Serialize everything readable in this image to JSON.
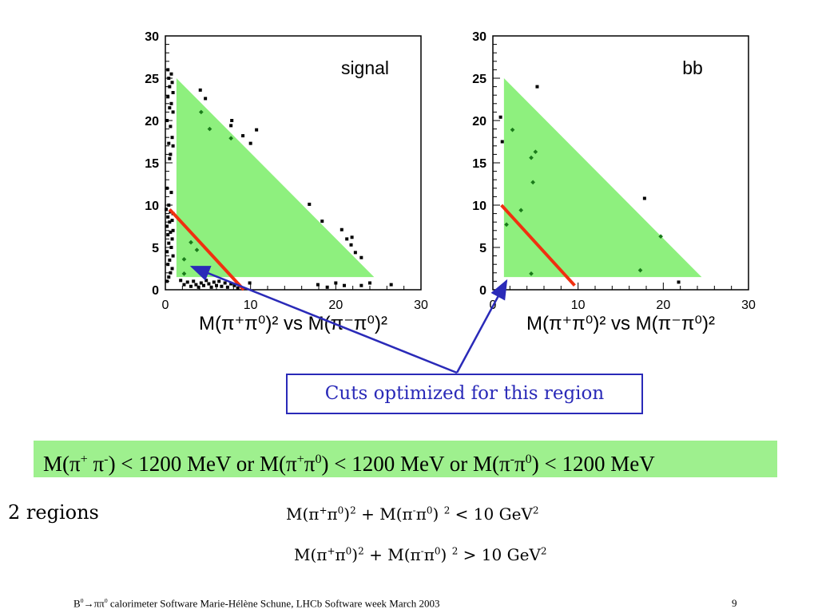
{
  "colors": {
    "region_fill": "#8ef07e",
    "cut_line": "#f03010",
    "arrow": "#2a2ab8",
    "band_fill": "#9ef08e",
    "signal_marker": "#000000",
    "inside_marker": "#1a7a1a"
  },
  "chart_data": [
    {
      "type": "scatter",
      "title": "signal",
      "xlabel": "M(π⁺π⁰)² vs M(π⁻π⁰)²",
      "xlim": [
        0,
        30
      ],
      "ylim": [
        0,
        30
      ],
      "xticks": [
        "0",
        "10",
        "20",
        "30"
      ],
      "yticks": [
        "0",
        "5",
        "10",
        "15",
        "20",
        "25",
        "30"
      ],
      "region": [
        [
          1.3,
          1.5
        ],
        [
          1.3,
          25
        ],
        [
          24.5,
          1.5
        ]
      ],
      "cut_line": [
        [
          0.5,
          9.5
        ],
        [
          9.2,
          0
        ]
      ],
      "points_outside": [
        [
          0.3,
          26
        ],
        [
          0.7,
          25.5
        ],
        [
          0.4,
          25
        ],
        [
          0.8,
          24.5
        ],
        [
          0.5,
          24
        ],
        [
          0.9,
          23.3
        ],
        [
          0.3,
          22.8
        ],
        [
          0.7,
          22
        ],
        [
          0.5,
          21.5
        ],
        [
          0.9,
          21
        ],
        [
          0.2,
          20
        ],
        [
          0.6,
          19.3
        ],
        [
          0.8,
          18
        ],
        [
          0.4,
          17.3
        ],
        [
          0.9,
          17
        ],
        [
          0.6,
          16
        ],
        [
          0.5,
          15.5
        ],
        [
          0.2,
          12
        ],
        [
          0.7,
          11.5
        ],
        [
          0.4,
          10
        ],
        [
          0.1,
          9.5
        ],
        [
          0.6,
          9.2
        ],
        [
          0.9,
          9
        ],
        [
          0.3,
          8.6
        ],
        [
          0.8,
          8.2
        ],
        [
          0.5,
          8
        ],
        [
          0.2,
          7.5
        ],
        [
          0.9,
          7
        ],
        [
          0.6,
          6.8
        ],
        [
          0.3,
          6.5
        ],
        [
          0.8,
          6
        ],
        [
          0.4,
          5.5
        ],
        [
          0.7,
          5
        ],
        [
          0.2,
          4.5
        ],
        [
          0.9,
          4
        ],
        [
          0.5,
          3.5
        ],
        [
          0.3,
          3
        ],
        [
          0.8,
          2.5
        ],
        [
          0.6,
          2
        ],
        [
          0.4,
          1.5
        ],
        [
          0.2,
          1
        ],
        [
          1.8,
          1.1
        ],
        [
          2.2,
          0.6
        ],
        [
          2.6,
          0.9
        ],
        [
          3.0,
          0.4
        ],
        [
          3.3,
          1.0
        ],
        [
          3.6,
          0.6
        ],
        [
          3.9,
          0.3
        ],
        [
          4.2,
          0.8
        ],
        [
          4.5,
          0.5
        ],
        [
          4.8,
          1.1
        ],
        [
          5.1,
          0.7
        ],
        [
          5.4,
          0.3
        ],
        [
          5.7,
          0.9
        ],
        [
          6.0,
          0.5
        ],
        [
          6.3,
          1.0
        ],
        [
          6.6,
          0.4
        ],
        [
          7.0,
          0.8
        ],
        [
          7.3,
          0.3
        ],
        [
          7.7,
          0.7
        ],
        [
          8.1,
          0.5
        ],
        [
          8.5,
          0.2
        ],
        [
          9.9,
          0.8
        ],
        [
          17.9,
          0.6
        ],
        [
          19,
          0.3
        ],
        [
          20,
          0.8
        ],
        [
          21,
          0.5
        ],
        [
          23,
          0.5
        ],
        [
          24,
          0.8
        ],
        [
          26.5,
          0.6
        ],
        [
          4.1,
          23.6
        ],
        [
          4.7,
          22.6
        ],
        [
          7.8,
          20.0
        ],
        [
          7.7,
          19.4
        ],
        [
          9.1,
          18.2
        ],
        [
          10.0,
          17.3
        ],
        [
          10.7,
          18.9
        ],
        [
          16.9,
          10.1
        ],
        [
          18.4,
          8.1
        ],
        [
          20.7,
          7.1
        ],
        [
          21.3,
          6.0
        ],
        [
          21.9,
          6.2
        ],
        [
          21.8,
          5.3
        ],
        [
          22.3,
          4.4
        ],
        [
          23.0,
          3.8
        ]
      ],
      "points_inside": [
        [
          4.2,
          21
        ],
        [
          5.2,
          19
        ],
        [
          7.7,
          17.9
        ],
        [
          3.0,
          5.6
        ],
        [
          3.7,
          4.7
        ],
        [
          2.2,
          3.6
        ],
        [
          2.2,
          1.9
        ]
      ]
    },
    {
      "type": "scatter",
      "title": "bb",
      "xlabel": "M(π⁺π⁰)² vs M(π⁻π⁰)²",
      "xlim": [
        0,
        30
      ],
      "ylim": [
        0,
        30
      ],
      "xticks": [
        "0",
        "10",
        "20",
        "30"
      ],
      "yticks": [
        "0",
        "5",
        "10",
        "15",
        "20",
        "25",
        "30"
      ],
      "region": [
        [
          1.3,
          1.5
        ],
        [
          1.3,
          25
        ],
        [
          24.5,
          1.5
        ]
      ],
      "cut_line": [
        [
          1.0,
          10.0
        ],
        [
          9.6,
          0.5
        ]
      ],
      "points_outside": [
        [
          5.2,
          24.0
        ],
        [
          0.9,
          20.4
        ],
        [
          1.1,
          17.5
        ],
        [
          17.8,
          10.8
        ],
        [
          21.8,
          0.9
        ]
      ],
      "points_inside": [
        [
          2.3,
          18.9
        ],
        [
          4.5,
          15.6
        ],
        [
          5.0,
          16.3
        ],
        [
          4.7,
          12.7
        ],
        [
          3.3,
          9.4
        ],
        [
          1.6,
          7.7
        ],
        [
          4.5,
          1.9
        ],
        [
          17.3,
          2.3
        ],
        [
          19.7,
          6.3
        ]
      ]
    }
  ],
  "callout": "Cuts optimized for this region",
  "band": {
    "m1": "M(π",
    "s1": "+",
    "m2": " π",
    "s2": "-",
    "m3": ") < 1200 MeV or M(π",
    "s3": "+",
    "m4": "π",
    "s4": "0",
    "m5": ") < 1200 MeV or M(π",
    "s5": "-",
    "m6": "π",
    "s6": "0",
    "m7": ") < 1200 MeV"
  },
  "regions_label": "2 regions",
  "eq1": {
    "a": "M(π",
    "b": "+",
    "c": "π",
    "d": "0",
    "e": ")",
    "f": "2",
    "g": " + M(π",
    "h": "-",
    "i": "π",
    "j": "0",
    "k": ") ",
    "l": "2",
    "m": " < 10 GeV",
    "n": "2"
  },
  "eq2": {
    "a": "M(π",
    "b": "+",
    "c": "π",
    "d": "0",
    "e": ")",
    "f": "2",
    "g": " + M(π",
    "h": "-",
    "i": "π",
    "j": "0",
    "k": ") ",
    "l": "2",
    "m": " > 10 GeV",
    "n": "2"
  },
  "footer": {
    "b": "B",
    "b0": "0",
    "rest": "→ππ",
    "pi0": "0",
    "text": " calorimeter Software Marie-Hélène Schune, LHCb Software week March 2003"
  },
  "page_number": "9"
}
